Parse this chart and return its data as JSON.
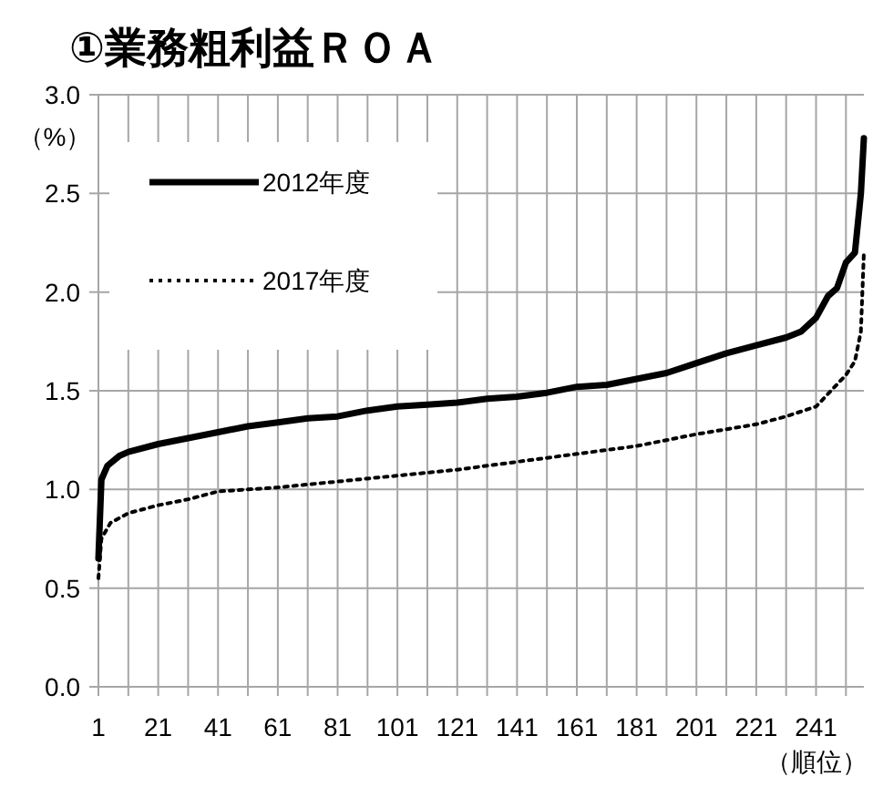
{
  "chart_data": {
    "type": "line",
    "title": "①業務粗利益ＲＯＡ",
    "ylabel": "（%）",
    "xlabel": "（順位）",
    "xlim": [
      1,
      257
    ],
    "ylim": [
      0,
      3.0
    ],
    "xticks": [
      1,
      {
        "value": 11,
        "label": null
      },
      21,
      {
        "value": 31,
        "label": null
      },
      41,
      {
        "value": 51,
        "label": null
      },
      61,
      {
        "value": 71,
        "label": null
      },
      81,
      {
        "value": 91,
        "label": null
      },
      101,
      {
        "value": 111,
        "label": null
      },
      121,
      {
        "value": 131,
        "label": null
      },
      141,
      {
        "value": 151,
        "label": null
      },
      161,
      {
        "value": 171,
        "label": null
      },
      181,
      {
        "value": 191,
        "label": null
      },
      201,
      {
        "value": 211,
        "label": null
      },
      221,
      {
        "value": 231,
        "label": null
      },
      241,
      {
        "value": 251,
        "label": null
      }
    ],
    "yticks": [
      {
        "value": 0,
        "label": "0.0"
      },
      {
        "value": 0.5,
        "label": "0.5"
      },
      {
        "value": 1,
        "label": "1.0"
      },
      {
        "value": 1.5,
        "label": "1.5"
      },
      {
        "value": 2,
        "label": "2.0"
      },
      {
        "value": 2.5,
        "label": "2.5"
      },
      {
        "value": 3,
        "label": "3.0"
      }
    ],
    "grid": true,
    "legend": "top left",
    "series": [
      {
        "name": "2012年度",
        "color": "#000000",
        "line_style": "solid",
        "x": [
          1,
          2,
          4,
          8,
          11,
          21,
          31,
          41,
          51,
          61,
          71,
          81,
          91,
          101,
          111,
          121,
          131,
          141,
          151,
          161,
          171,
          181,
          191,
          201,
          211,
          221,
          231,
          236,
          241,
          245,
          248,
          251,
          254,
          256,
          257
        ],
        "values": [
          0.65,
          1.05,
          1.12,
          1.17,
          1.19,
          1.23,
          1.26,
          1.29,
          1.32,
          1.34,
          1.36,
          1.37,
          1.4,
          1.42,
          1.43,
          1.44,
          1.46,
          1.47,
          1.49,
          1.52,
          1.53,
          1.56,
          1.59,
          1.64,
          1.69,
          1.73,
          1.77,
          1.8,
          1.87,
          1.98,
          2.02,
          2.15,
          2.2,
          2.5,
          2.78
        ]
      },
      {
        "name": "2017年度",
        "color": "#000000",
        "line_style": "dotted",
        "x": [
          1,
          2,
          5,
          11,
          21,
          31,
          41,
          61,
          81,
          101,
          121,
          141,
          161,
          181,
          201,
          221,
          231,
          241,
          246,
          251,
          254,
          256,
          257
        ],
        "values": [
          0.55,
          0.75,
          0.83,
          0.88,
          0.92,
          0.95,
          0.99,
          1.01,
          1.04,
          1.07,
          1.1,
          1.14,
          1.18,
          1.22,
          1.28,
          1.33,
          1.37,
          1.42,
          1.5,
          1.58,
          1.65,
          1.8,
          2.2
        ]
      }
    ]
  }
}
